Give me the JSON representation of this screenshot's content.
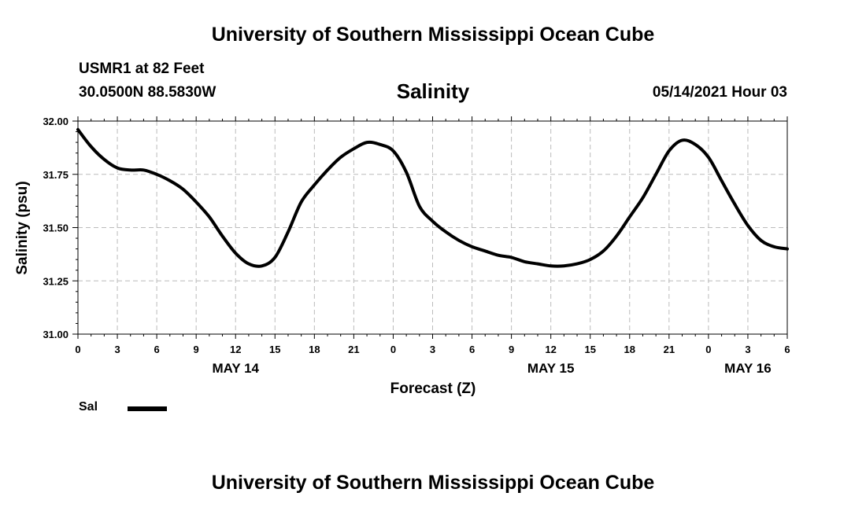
{
  "header": {
    "title": "University of Southern Mississippi Ocean Cube",
    "station": "USMR1 at 82 Feet",
    "coordinates": "30.0500N  88.5830W",
    "parameter": "Salinity",
    "datetime": "05/14/2021 Hour 03"
  },
  "footer": {
    "title": "University of Southern Mississippi Ocean Cube"
  },
  "chart_data": {
    "type": "line",
    "title": "Salinity",
    "xlabel": "Forecast (Z)",
    "ylabel": "Salinity (psu)",
    "ylim": [
      31.0,
      32.0
    ],
    "xlim": [
      0,
      54
    ],
    "y_ticks": [
      "31.00",
      "31.25",
      "31.50",
      "31.75",
      "32.00"
    ],
    "x_ticks": [
      "0",
      "3",
      "6",
      "9",
      "12",
      "15",
      "18",
      "21",
      "0",
      "3",
      "6",
      "9",
      "12",
      "15",
      "18",
      "21",
      "0",
      "3",
      "6"
    ],
    "day_labels": [
      {
        "label": "MAY 14",
        "hour": 12
      },
      {
        "label": "MAY 15",
        "hour": 36
      },
      {
        "label": "MAY 16",
        "hour": 51
      }
    ],
    "grid": true,
    "legend_position": "bottom-left",
    "series": [
      {
        "name": "Sal",
        "color": "#000000",
        "x": [
          0,
          1,
          2,
          3,
          4,
          5,
          6,
          7,
          8,
          9,
          10,
          11,
          12,
          13,
          14,
          15,
          16,
          17,
          18,
          19,
          20,
          21,
          22,
          23,
          24,
          25,
          26,
          27,
          28,
          29,
          30,
          31,
          32,
          33,
          34,
          35,
          36,
          37,
          38,
          39,
          40,
          41,
          42,
          43,
          44,
          45,
          46,
          47,
          48,
          49,
          50,
          51,
          52,
          53,
          54
        ],
        "values": [
          31.96,
          31.88,
          31.82,
          31.78,
          31.77,
          31.77,
          31.75,
          31.72,
          31.68,
          31.62,
          31.55,
          31.46,
          31.38,
          31.33,
          31.32,
          31.36,
          31.48,
          31.62,
          31.7,
          31.77,
          31.83,
          31.87,
          31.9,
          31.89,
          31.86,
          31.76,
          31.6,
          31.53,
          31.48,
          31.44,
          31.41,
          31.39,
          31.37,
          31.36,
          31.34,
          31.33,
          31.32,
          31.32,
          31.33,
          31.35,
          31.39,
          31.46,
          31.55,
          31.64,
          31.75,
          31.86,
          31.91,
          31.89,
          31.83,
          31.72,
          31.61,
          31.51,
          31.44,
          31.41,
          31.4
        ]
      }
    ]
  }
}
